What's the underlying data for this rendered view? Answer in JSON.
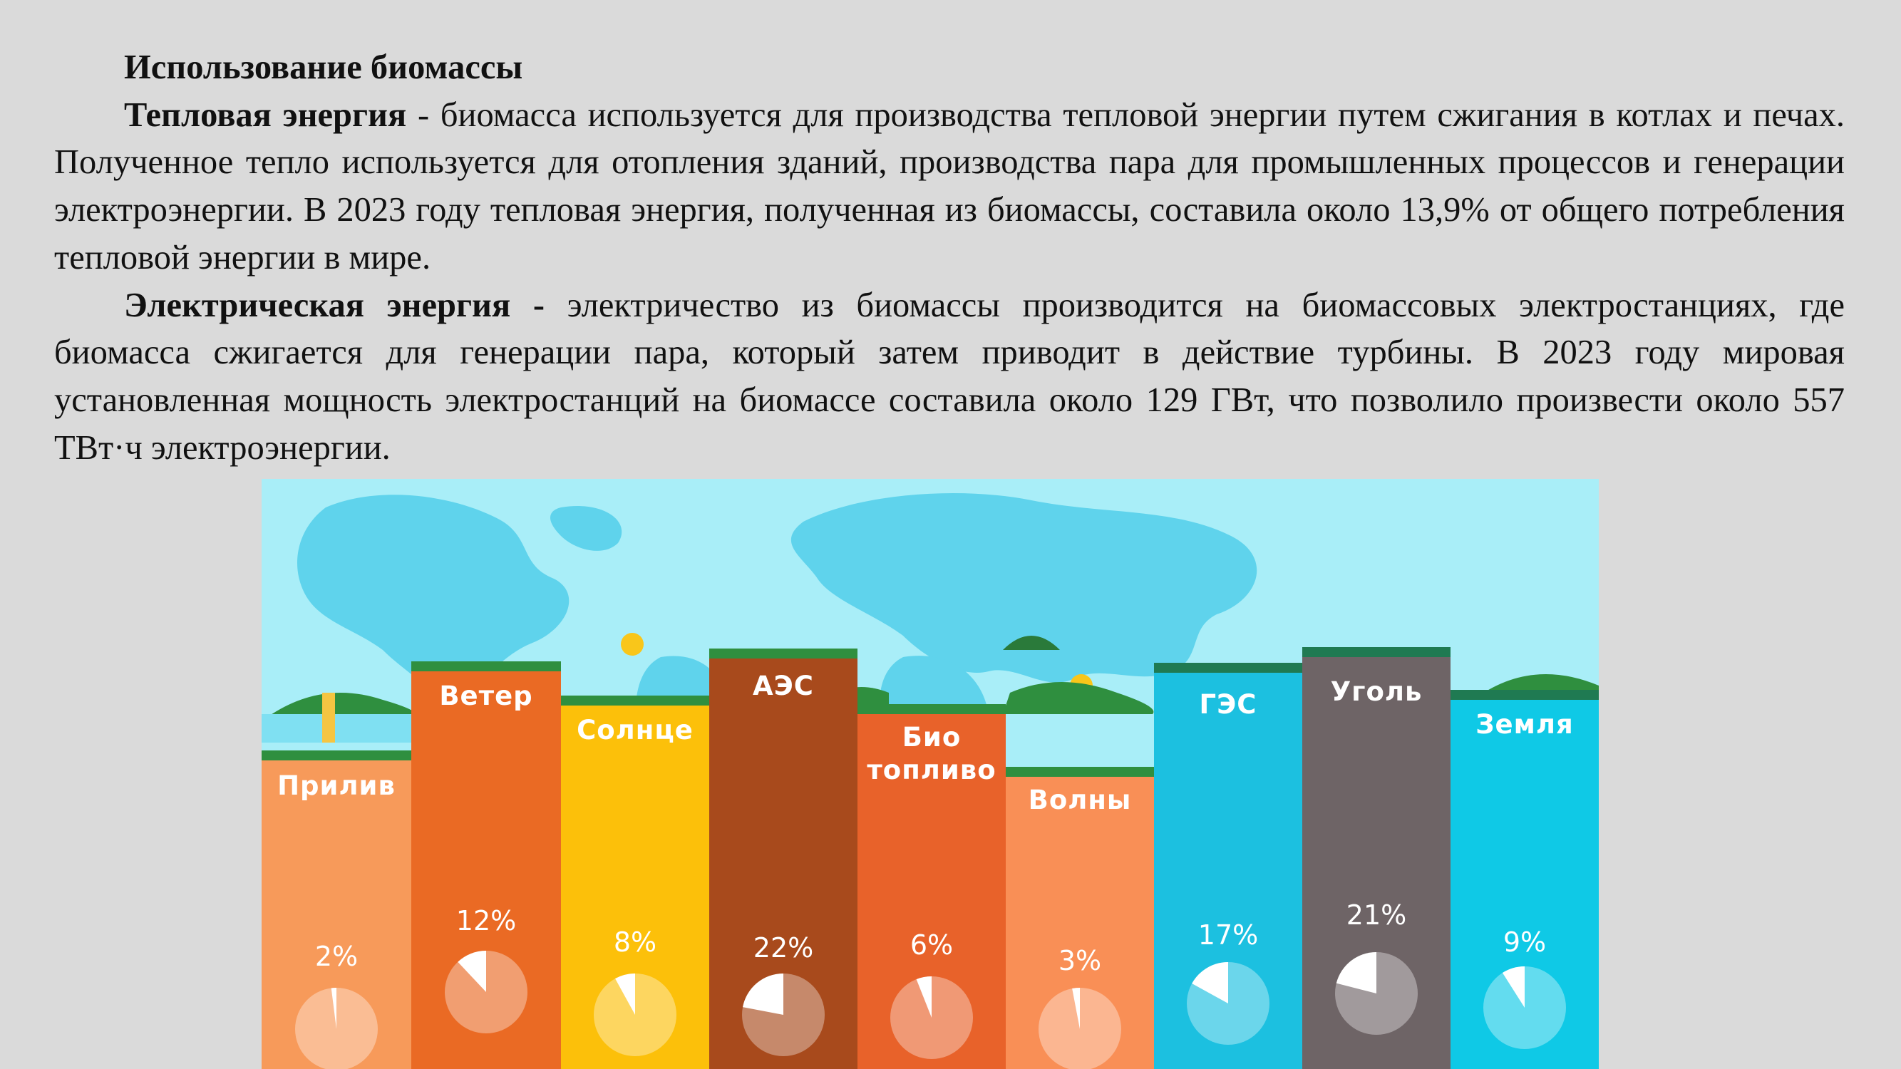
{
  "document": {
    "title": "Использование биомассы",
    "p1_bold": "Тепловая энергия",
    "p1_text": " - биомасса используется для производства тепловой энергии путем сжигания в котлах и печах. Полученное тепло используется для отопления зданий, производства пара для промышленных процессов и генерации электроэнергии. В 2023 году тепловая энергия, полученная из биомассы, составила около 13,9% от общего потребления тепловой энергии в мире.",
    "p2_bold": "Электрическая энергия -",
    "p2_text": " электричество из биомассы производится на биомассовых электростанциях, где биомасса сжигается для генерации пара, который затем приводит в действие турбины. В 2023 году мировая установленная мощность электростанций на биомассе составила около 129 ГВт, что позволило произвести около 557 ТВт·ч электроэнергии."
  },
  "infographic": {
    "columns": [
      {
        "label": "Прилив",
        "percent": "2%",
        "share": 0.02,
        "color": "#f79a5a"
      },
      {
        "label": "Ветер",
        "percent": "12%",
        "share": 0.12,
        "color": "#ea6a24"
      },
      {
        "label": "Солнце",
        "percent": "8%",
        "share": 0.08,
        "color": "#fcc00a"
      },
      {
        "label": "АЭС",
        "percent": "22%",
        "share": 0.22,
        "color": "#a84a1c"
      },
      {
        "label": "Био топливо",
        "label_line1": "Био",
        "label_line2": "топливо",
        "percent": "6%",
        "share": 0.06,
        "color": "#e8622a"
      },
      {
        "label": "Волны",
        "percent": "3%",
        "share": 0.03,
        "color": "#f98f56"
      },
      {
        "label": "ГЭС",
        "percent": "17%",
        "share": 0.17,
        "color": "#1cc0e0"
      },
      {
        "label": "Уголь",
        "percent": "21%",
        "share": 0.21,
        "color": "#6e6466"
      },
      {
        "label": "Земля",
        "percent": "9%",
        "share": 0.09,
        "color": "#0fc9e6"
      }
    ]
  }
}
